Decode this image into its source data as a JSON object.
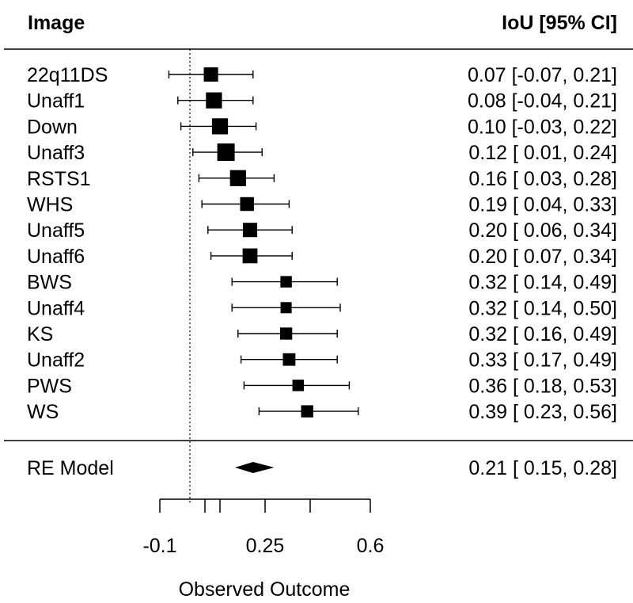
{
  "chart_data": {
    "type": "forest",
    "header": {
      "left": "Image",
      "right": "IoU [95% CI]"
    },
    "studies": [
      {
        "label": "22q11DS",
        "estimate": 0.07,
        "ci_lower": -0.07,
        "ci_upper": 0.21,
        "text": "0.07 [-0.07, 0.21]"
      },
      {
        "label": "Unaff1",
        "estimate": 0.08,
        "ci_lower": -0.04,
        "ci_upper": 0.21,
        "text": "0.08 [-0.04, 0.21]"
      },
      {
        "label": "Down",
        "estimate": 0.1,
        "ci_lower": -0.03,
        "ci_upper": 0.22,
        "text": "0.10 [-0.03, 0.22]"
      },
      {
        "label": "Unaff3",
        "estimate": 0.12,
        "ci_lower": 0.01,
        "ci_upper": 0.24,
        "text": "0.12 [ 0.01, 0.24]"
      },
      {
        "label": "RSTS1",
        "estimate": 0.16,
        "ci_lower": 0.03,
        "ci_upper": 0.28,
        "text": "0.16 [ 0.03, 0.28]"
      },
      {
        "label": "WHS",
        "estimate": 0.19,
        "ci_lower": 0.04,
        "ci_upper": 0.33,
        "text": "0.19 [ 0.04, 0.33]"
      },
      {
        "label": "Unaff5",
        "estimate": 0.2,
        "ci_lower": 0.06,
        "ci_upper": 0.34,
        "text": "0.20 [ 0.06, 0.34]"
      },
      {
        "label": "Unaff6",
        "estimate": 0.2,
        "ci_lower": 0.07,
        "ci_upper": 0.34,
        "text": "0.20 [ 0.07, 0.34]"
      },
      {
        "label": "BWS",
        "estimate": 0.32,
        "ci_lower": 0.14,
        "ci_upper": 0.49,
        "text": "0.32 [ 0.14, 0.49]"
      },
      {
        "label": "Unaff4",
        "estimate": 0.32,
        "ci_lower": 0.14,
        "ci_upper": 0.5,
        "text": "0.32 [ 0.14, 0.50]"
      },
      {
        "label": "KS",
        "estimate": 0.32,
        "ci_lower": 0.16,
        "ci_upper": 0.49,
        "text": "0.32 [ 0.16, 0.49]"
      },
      {
        "label": "Unaff2",
        "estimate": 0.33,
        "ci_lower": 0.17,
        "ci_upper": 0.49,
        "text": "0.33 [ 0.17, 0.49]"
      },
      {
        "label": "PWS",
        "estimate": 0.36,
        "ci_lower": 0.18,
        "ci_upper": 0.53,
        "text": "0.36 [ 0.18, 0.53]"
      },
      {
        "label": "WS",
        "estimate": 0.39,
        "ci_lower": 0.23,
        "ci_upper": 0.56,
        "text": "0.39 [ 0.23, 0.56]"
      }
    ],
    "summary": {
      "label": "RE Model",
      "estimate": 0.21,
      "ci_lower": 0.15,
      "ci_upper": 0.28,
      "text": "0.21 [ 0.15, 0.28]"
    },
    "reference_line": 0,
    "xlabel": "Observed Outcome",
    "xlim": [
      -0.1,
      0.6
    ],
    "x_ticks": [
      -0.1,
      0.05,
      0.1,
      0.25,
      0.4,
      0.6
    ],
    "x_tick_labels": [
      "-0.1",
      "",
      "",
      "0.25",
      "",
      "0.6"
    ]
  }
}
